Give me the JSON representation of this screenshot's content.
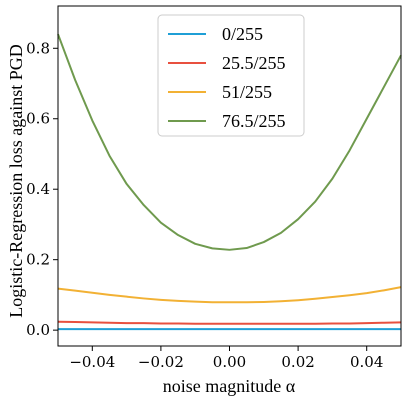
{
  "chart_data": {
    "type": "line",
    "title": "",
    "xlabel": "noise magnitude α",
    "ylabel": "Logistic-Regression loss against PGD",
    "xlim": [
      -0.05,
      0.05
    ],
    "ylim": [
      -0.045,
      0.92
    ],
    "xticks": [
      -0.04,
      -0.02,
      0.0,
      0.02,
      0.04
    ],
    "xtick_labels": [
      "−0.04",
      "−0.02",
      "0.00",
      "0.02",
      "0.04"
    ],
    "yticks": [
      0.0,
      0.2,
      0.4,
      0.6,
      0.8
    ],
    "ytick_labels": [
      "0.0",
      "0.2",
      "0.4",
      "0.6",
      "0.8"
    ],
    "grid": false,
    "legend_position": "top-center",
    "x": [
      -0.05,
      -0.045,
      -0.04,
      -0.035,
      -0.03,
      -0.025,
      -0.02,
      -0.015,
      -0.01,
      -0.005,
      0.0,
      0.005,
      0.01,
      0.015,
      0.02,
      0.025,
      0.03,
      0.035,
      0.04,
      0.045,
      0.05
    ],
    "series": [
      {
        "name": "0/255",
        "color": "#1f9fd6",
        "values": [
          0.003,
          0.003,
          0.003,
          0.003,
          0.003,
          0.003,
          0.003,
          0.003,
          0.003,
          0.003,
          0.003,
          0.003,
          0.003,
          0.003,
          0.003,
          0.003,
          0.003,
          0.003,
          0.003,
          0.003,
          0.003
        ]
      },
      {
        "name": "25.5/255",
        "color": "#e8503f",
        "values": [
          0.024,
          0.023,
          0.022,
          0.021,
          0.02,
          0.02,
          0.019,
          0.019,
          0.018,
          0.018,
          0.018,
          0.018,
          0.018,
          0.018,
          0.018,
          0.018,
          0.019,
          0.019,
          0.02,
          0.021,
          0.022
        ]
      },
      {
        "name": "51/255",
        "color": "#f2b134",
        "values": [
          0.118,
          0.112,
          0.106,
          0.1,
          0.095,
          0.09,
          0.086,
          0.083,
          0.081,
          0.079,
          0.079,
          0.079,
          0.08,
          0.082,
          0.085,
          0.089,
          0.094,
          0.099,
          0.105,
          0.113,
          0.122
        ]
      },
      {
        "name": "76.5/255",
        "color": "#6f9a4e",
        "values": [
          0.84,
          0.71,
          0.595,
          0.495,
          0.415,
          0.355,
          0.305,
          0.27,
          0.245,
          0.232,
          0.228,
          0.233,
          0.25,
          0.276,
          0.315,
          0.365,
          0.43,
          0.51,
          0.6,
          0.69,
          0.78
        ]
      }
    ]
  }
}
